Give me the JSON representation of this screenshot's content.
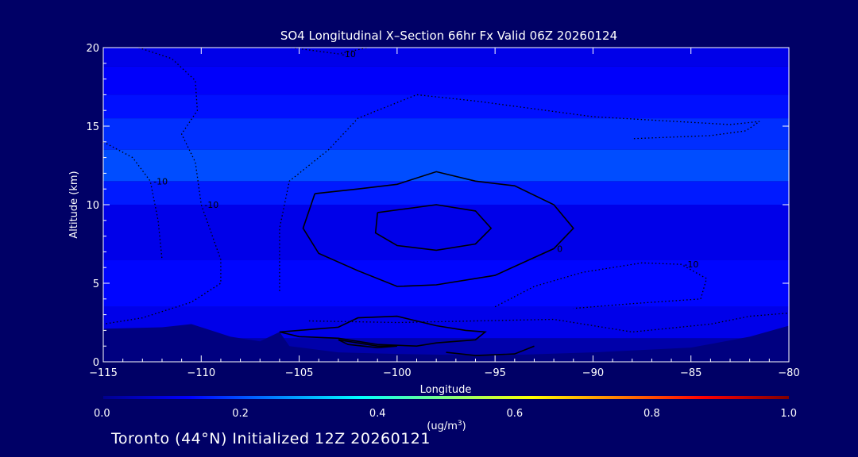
{
  "chart_data": {
    "type": "heatmap",
    "title": "SO4 Longitudinal X–Section 66hr  Fx Valid 06Z 20260124",
    "xlabel": "Longitude",
    "ylabel": "Altitude (km)",
    "xlim": [
      -115,
      -80
    ],
    "ylim": [
      0,
      20
    ],
    "x_ticks": [
      -115,
      -110,
      -105,
      -100,
      -95,
      -90,
      -85,
      -80
    ],
    "x_tick_labels": [
      "−115",
      "−110",
      "−105",
      "−100",
      "−95",
      "−90",
      "−85",
      "−80"
    ],
    "y_ticks": [
      0,
      5,
      10,
      15,
      20
    ],
    "y_tick_labels": [
      "0",
      "5",
      "10",
      "15",
      "20"
    ],
    "colorbar": {
      "label_html": "(ug/m",
      "label_sup": "3",
      "label_end": ")",
      "ticks": [
        0.0,
        0.2,
        0.4,
        0.6,
        0.8,
        1.0
      ],
      "tick_labels": [
        "0.0",
        "0.2",
        "0.4",
        "0.6",
        "0.8",
        "1.0"
      ],
      "colors": [
        "#00008f",
        "#0000ff",
        "#0080ff",
        "#00ffff",
        "#80ff80",
        "#ffff00",
        "#ff8000",
        "#ff0000",
        "#800000"
      ]
    },
    "altitude_bands": [
      {
        "from": 0,
        "to": 1.5,
        "value": 0.03
      },
      {
        "from": 1.5,
        "to": 3.5,
        "value": 0.1
      },
      {
        "from": 3.5,
        "to": 6.5,
        "value": 0.13
      },
      {
        "from": 6.5,
        "to": 10,
        "value": 0.1
      },
      {
        "from": 10,
        "to": 11.5,
        "value": 0.15
      },
      {
        "from": 11.5,
        "to": 13.5,
        "value": 0.2
      },
      {
        "from": 13.5,
        "to": 15.5,
        "value": 0.17
      },
      {
        "from": 15.5,
        "to": 17,
        "value": 0.14
      },
      {
        "from": 17,
        "to": 18.8,
        "value": 0.12
      },
      {
        "from": 18.8,
        "to": 20,
        "value": 0.1
      }
    ],
    "contours": [
      {
        "label": "0",
        "style": "solid",
        "points": [
          [
            -104.2,
            10.7
          ],
          [
            -102,
            11.0
          ],
          [
            -100,
            11.3
          ],
          [
            -98,
            12.1
          ],
          [
            -96,
            11.5
          ],
          [
            -94,
            11.2
          ],
          [
            -92,
            10.0
          ],
          [
            -91,
            8.5
          ],
          [
            -92,
            7.2
          ],
          [
            -95,
            5.5
          ],
          [
            -98,
            4.9
          ],
          [
            -100,
            4.8
          ],
          [
            -102,
            5.8
          ],
          [
            -104,
            6.9
          ],
          [
            -104.8,
            8.5
          ],
          [
            -104.2,
            10.7
          ]
        ]
      },
      {
        "label": "",
        "style": "solid",
        "points": [
          [
            -101,
            9.5
          ],
          [
            -98,
            10.0
          ],
          [
            -96,
            9.6
          ],
          [
            -95.2,
            8.5
          ],
          [
            -96,
            7.5
          ],
          [
            -98,
            7.1
          ],
          [
            -100,
            7.4
          ],
          [
            -101.1,
            8.2
          ],
          [
            -101,
            9.5
          ]
        ]
      },
      {
        "label": "",
        "style": "solid",
        "points": [
          [
            -106,
            1.9
          ],
          [
            -103,
            2.2
          ],
          [
            -102,
            2.8
          ],
          [
            -100,
            2.9
          ],
          [
            -98,
            2.3
          ],
          [
            -96.5,
            2.0
          ],
          [
            -95.5,
            1.9
          ],
          [
            -96,
            1.4
          ],
          [
            -98,
            1.2
          ],
          [
            -99,
            1.0
          ],
          [
            -101,
            1.1
          ],
          [
            -103,
            1.5
          ],
          [
            -105,
            1.6
          ],
          [
            -106,
            1.9
          ]
        ]
      },
      {
        "label": "",
        "style": "solid",
        "points": [
          [
            -103,
            1.4
          ],
          [
            -101,
            1.0
          ],
          [
            -100,
            1.0
          ],
          [
            -101,
            0.9
          ],
          [
            -102.5,
            1.1
          ],
          [
            -103,
            1.4
          ]
        ]
      },
      {
        "label": "",
        "style": "solid",
        "points": [
          [
            -97.5,
            0.6
          ],
          [
            -96,
            0.4
          ],
          [
            -94,
            0.5
          ],
          [
            -93,
            1.0
          ]
        ]
      },
      {
        "label": "-10",
        "style": "dotted",
        "points": [
          [
            -113.2,
            20
          ],
          [
            -111.5,
            19.3
          ],
          [
            -110.3,
            17.9
          ],
          [
            -110.2,
            16.0
          ],
          [
            -111.0,
            14.5
          ],
          [
            -110.3,
            12.7
          ],
          [
            -110,
            10
          ],
          [
            -109,
            6.5
          ],
          [
            -109,
            5.0
          ],
          [
            -110.5,
            3.8
          ],
          [
            -113,
            2.8
          ],
          [
            -115,
            2.4
          ]
        ]
      },
      {
        "label": "-10",
        "style": "dotted",
        "points": [
          [
            -115,
            14
          ],
          [
            -113.5,
            13.0
          ],
          [
            -112.6,
            11.5
          ],
          [
            -112.2,
            9.0
          ],
          [
            -112.0,
            6.5
          ]
        ]
      },
      {
        "label": "-10",
        "style": "dotted",
        "points": [
          [
            -105.4,
            20
          ],
          [
            -103,
            19.6
          ],
          [
            -101.5,
            20
          ]
        ]
      },
      {
        "label": "",
        "style": "dotted",
        "points": [
          [
            -106,
            4.5
          ],
          [
            -106,
            8.5
          ],
          [
            -105.5,
            11.5
          ],
          [
            -103.5,
            13.5
          ],
          [
            -102,
            15.5
          ],
          [
            -99,
            17.0
          ],
          [
            -96,
            16.6
          ],
          [
            -90,
            15.6
          ],
          [
            -83,
            15.1
          ],
          [
            -81.5,
            15.3
          ],
          [
            -82.2,
            14.7
          ],
          [
            -84,
            14.4
          ],
          [
            -88,
            14.2
          ]
        ]
      },
      {
        "label": "-10",
        "style": "dotted",
        "points": [
          [
            -95,
            3.5
          ],
          [
            -93,
            4.8
          ],
          [
            -90.5,
            5.7
          ],
          [
            -87.5,
            6.3
          ],
          [
            -85.5,
            6.2
          ],
          [
            -84.2,
            5.3
          ],
          [
            -84.5,
            4.0
          ],
          [
            -88,
            3.7
          ],
          [
            -91,
            3.4
          ]
        ]
      },
      {
        "label": "",
        "style": "dotted",
        "points": [
          [
            -104.5,
            2.6
          ],
          [
            -100,
            2.5
          ],
          [
            -96,
            2.6
          ],
          [
            -92,
            2.7
          ],
          [
            -88,
            1.9
          ],
          [
            -84,
            2.4
          ],
          [
            -82,
            2.9
          ],
          [
            -80,
            3.1
          ]
        ]
      }
    ]
  },
  "footer": {
    "location_text": "Toronto (44°N) Initialized 12Z 20260121"
  }
}
